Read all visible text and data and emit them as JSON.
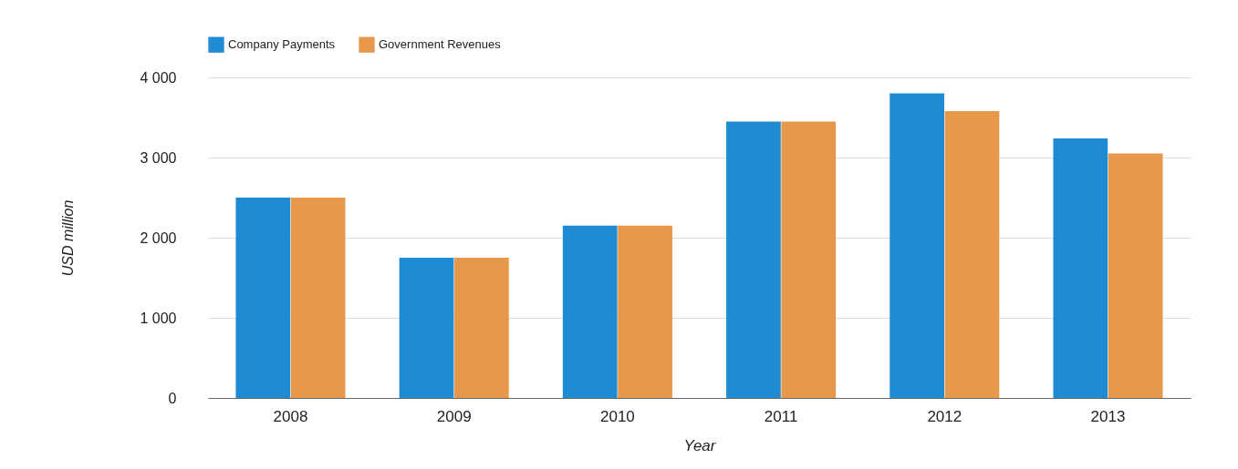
{
  "chart_data": {
    "type": "bar",
    "xlabel": "Year",
    "ylabel": "USD million",
    "categories": [
      "2008",
      "2009",
      "2010",
      "2011",
      "2012",
      "2013"
    ],
    "series": [
      {
        "name": "Company Payments",
        "color": "#1f8bd3",
        "values": [
          2500,
          1750,
          2150,
          3450,
          3800,
          3240
        ]
      },
      {
        "name": "Government Revenues",
        "color": "#e8984b",
        "values": [
          2500,
          1750,
          2150,
          3450,
          3580,
          3050
        ]
      }
    ],
    "ylim": [
      0,
      4000
    ],
    "yticks": [
      {
        "value": 0,
        "label": "0"
      },
      {
        "value": 1000,
        "label": "1 000"
      },
      {
        "value": 2000,
        "label": "2 000"
      },
      {
        "value": 3000,
        "label": "3 000"
      },
      {
        "value": 4000,
        "label": "4 000"
      }
    ],
    "grid": "y",
    "legend": "top left"
  }
}
